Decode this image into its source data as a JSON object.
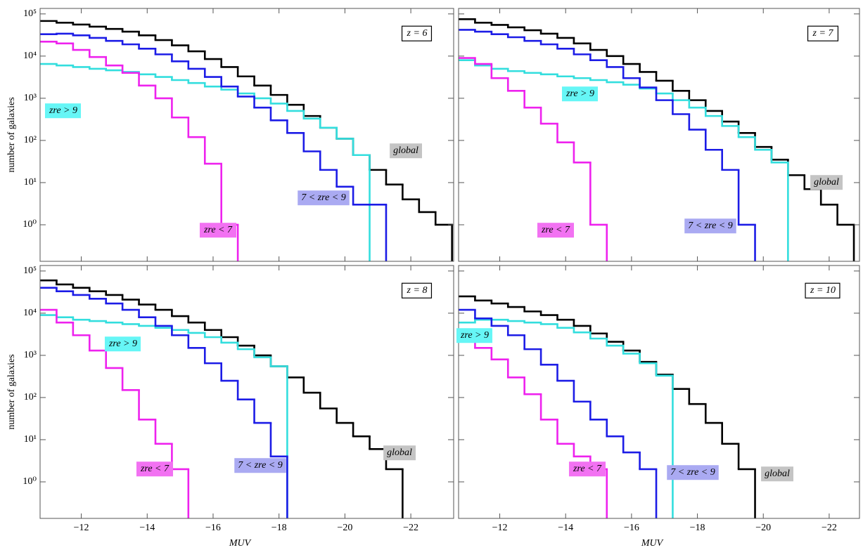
{
  "chart_data": [
    {
      "type": "histogram",
      "label": "z = 6",
      "log_y": true,
      "ylabel": "number of galaxies",
      "bins": [
        -10.75,
        -11.25,
        -11.75,
        -12.25,
        -12.75,
        -13.25,
        -13.75,
        -14.25,
        -14.75,
        -15.25,
        -15.75,
        -16.25,
        -16.75,
        -17.25,
        -17.75,
        -18.25,
        -18.75,
        -19.25,
        -19.75,
        -20.25,
        -20.75,
        -21.25,
        -21.75,
        -22.25,
        -22.75,
        -23.25
      ],
      "xlim": [
        -10.75,
        -23.3
      ],
      "ylim": [
        0.136,
        135000
      ],
      "xticks": [
        -12,
        -14,
        -16,
        -18,
        -20,
        -22
      ],
      "yticks": [
        {
          "value": 1,
          "label": "10⁰"
        },
        {
          "value": 10,
          "label": "10¹"
        },
        {
          "value": 100,
          "label": "10²"
        },
        {
          "value": 1000,
          "label": "10³"
        },
        {
          "value": 10000,
          "label": "10⁴"
        },
        {
          "value": 100000,
          "label": "10⁵"
        }
      ],
      "series": [
        {
          "name": "global",
          "color": "#000000",
          "box": "#c4c4c4",
          "values": [
            68000,
            62000,
            56000,
            50000,
            44000,
            38000,
            31000,
            24000,
            18000,
            13000,
            8500,
            5500,
            3300,
            2000,
            1200,
            700,
            380,
            200,
            110,
            45,
            20,
            9,
            4,
            2,
            1
          ]
        },
        {
          "name": "zre > 9",
          "color": "#33dede",
          "box": "#66f6f6",
          "values": [
            6500,
            6000,
            5500,
            5000,
            4600,
            4200,
            3700,
            3200,
            2700,
            2300,
            1900,
            1600,
            1300,
            1000,
            750,
            500,
            330,
            200,
            110,
            45,
            null,
            null,
            null,
            null,
            null
          ]
        },
        {
          "name": "7 < zre < 9",
          "color": "#1c1ce6",
          "box": "#aaaaf2",
          "values": [
            33000,
            34000,
            31000,
            27000,
            23000,
            19000,
            15000,
            11000,
            7500,
            5000,
            3200,
            1900,
            1100,
            600,
            300,
            150,
            55,
            20,
            8,
            3,
            3,
            null,
            null,
            null,
            null
          ]
        },
        {
          "name": "zre < 7",
          "color": "#ee22ee",
          "box": "#f272f2",
          "values": [
            22000,
            20000,
            14000,
            9500,
            6000,
            4000,
            2000,
            1000,
            350,
            120,
            28,
            1,
            null,
            null,
            null,
            null,
            null,
            null,
            null,
            null,
            null,
            null,
            null,
            null,
            null
          ]
        }
      ]
    },
    {
      "type": "histogram",
      "label": "z = 7",
      "log_y": true,
      "bins": [
        -10.75,
        -11.25,
        -11.75,
        -12.25,
        -12.75,
        -13.25,
        -13.75,
        -14.25,
        -14.75,
        -15.25,
        -15.75,
        -16.25,
        -16.75,
        -17.25,
        -17.75,
        -18.25,
        -18.75,
        -19.25,
        -19.75,
        -20.25,
        -20.75,
        -21.25,
        -21.75,
        -22.25,
        -22.75,
        -23.25
      ],
      "xlim": [
        -10.75,
        -22.92
      ],
      "ylim": [
        0.136,
        135000
      ],
      "xticks": [
        -12,
        -14,
        -16,
        -18,
        -20,
        -22
      ],
      "yticks": [
        1,
        10,
        100,
        1000,
        10000,
        100000
      ],
      "series": [
        {
          "name": "global",
          "color": "#000000",
          "box": "#c4c4c4",
          "values": [
            75000,
            62000,
            55000,
            48000,
            41000,
            34000,
            27000,
            20000,
            14000,
            10000,
            6500,
            4200,
            2600,
            1500,
            900,
            500,
            280,
            150,
            70,
            35,
            15,
            7,
            3,
            1,
            null
          ]
        },
        {
          "name": "zre > 9",
          "color": "#33dede",
          "box": "#66f6f6",
          "values": [
            8000,
            6000,
            5000,
            4400,
            4000,
            3700,
            3300,
            3000,
            2700,
            2400,
            2100,
            1700,
            1300,
            900,
            600,
            380,
            220,
            120,
            60,
            30,
            null,
            null,
            null,
            null,
            null
          ]
        },
        {
          "name": "7 < zre < 9",
          "color": "#1c1ce6",
          "box": "#aaaaf2",
          "values": [
            42000,
            38000,
            33000,
            28000,
            23000,
            19000,
            15000,
            11000,
            8000,
            5500,
            3000,
            1800,
            900,
            420,
            180,
            60,
            20,
            1,
            null,
            null,
            null,
            null,
            null,
            null,
            null
          ]
        },
        {
          "name": "zre < 7",
          "color": "#ee22ee",
          "box": "#f272f2",
          "values": [
            9000,
            6500,
            3000,
            1500,
            600,
            250,
            90,
            30,
            1,
            null,
            null,
            null,
            null,
            null,
            null,
            null,
            null,
            null,
            null,
            null,
            null,
            null,
            null,
            null,
            null
          ]
        }
      ]
    },
    {
      "type": "histogram",
      "label": "z = 8",
      "log_y": true,
      "ylabel": "number of galaxies",
      "xlabel": "MUV",
      "bins": [
        -10.75,
        -11.25,
        -11.75,
        -12.25,
        -12.75,
        -13.25,
        -13.75,
        -14.25,
        -14.75,
        -15.25,
        -15.75,
        -16.25,
        -16.75,
        -17.25,
        -17.75,
        -18.25,
        -18.75,
        -19.25,
        -19.75,
        -20.25,
        -20.75,
        -21.25,
        -21.75,
        -22.25,
        -22.75,
        -23.25
      ],
      "xlim": [
        -10.75,
        -23.3
      ],
      "ylim": [
        0.136,
        135000
      ],
      "xticks": [
        {
          "value": -12,
          "label": "−12"
        },
        {
          "value": -14,
          "label": "−14"
        },
        {
          "value": -16,
          "label": "−16"
        },
        {
          "value": -18,
          "label": "−18"
        },
        {
          "value": -20,
          "label": "−20"
        },
        {
          "value": -22,
          "label": "−22"
        }
      ],
      "yticks": [
        {
          "value": 1,
          "label": "10⁰"
        },
        {
          "value": 10,
          "label": "10¹"
        },
        {
          "value": 100,
          "label": "10²"
        },
        {
          "value": 1000,
          "label": "10³"
        },
        {
          "value": 10000,
          "label": "10⁴"
        },
        {
          "value": 100000,
          "label": "10⁵"
        }
      ],
      "series": [
        {
          "name": "global",
          "color": "#000000",
          "box": "#c4c4c4",
          "values": [
            60000,
            48000,
            40000,
            33000,
            27000,
            21000,
            16000,
            12000,
            8500,
            6000,
            4000,
            2700,
            1700,
            1000,
            550,
            300,
            130,
            55,
            25,
            12,
            6,
            2,
            null,
            null,
            null
          ]
        },
        {
          "name": "zre > 9",
          "color": "#33dede",
          "box": "#66f6f6",
          "values": [
            9000,
            8000,
            7000,
            6500,
            6000,
            5500,
            5000,
            4500,
            4000,
            3400,
            2700,
            2000,
            1400,
            900,
            550,
            null,
            null,
            null,
            null,
            null,
            null,
            null,
            null,
            null,
            null
          ]
        },
        {
          "name": "7 < zre < 9",
          "color": "#1c1ce6",
          "box": "#aaaaf2",
          "values": [
            40000,
            33000,
            27000,
            22000,
            17000,
            12000,
            8000,
            5000,
            3000,
            1500,
            650,
            250,
            90,
            25,
            4,
            null,
            null,
            null,
            null,
            null,
            null,
            null,
            null,
            null,
            null
          ]
        },
        {
          "name": "zre < 7",
          "color": "#ee22ee",
          "box": "#f272f2",
          "values": [
            12000,
            6000,
            3000,
            1300,
            500,
            150,
            30,
            8,
            2,
            null,
            null,
            null,
            null,
            null,
            null,
            null,
            null,
            null,
            null,
            null,
            null,
            null,
            null,
            null,
            null
          ]
        }
      ]
    },
    {
      "type": "histogram",
      "label": "z = 10",
      "log_y": true,
      "xlabel": "MUV",
      "bins": [
        -10.75,
        -11.25,
        -11.75,
        -12.25,
        -12.75,
        -13.25,
        -13.75,
        -14.25,
        -14.75,
        -15.25,
        -15.75,
        -16.25,
        -16.75,
        -17.25,
        -17.75,
        -18.25,
        -18.75,
        -19.25,
        -19.75,
        -20.25,
        -20.75,
        -21.25,
        -21.75,
        -22.25,
        -22.75,
        -23.25
      ],
      "xlim": [
        -10.75,
        -22.92
      ],
      "ylim": [
        0.136,
        135000
      ],
      "xticks": [
        {
          "value": -12,
          "label": "−12"
        },
        {
          "value": -14,
          "label": "−14"
        },
        {
          "value": -16,
          "label": "−16"
        },
        {
          "value": -18,
          "label": "−18"
        },
        {
          "value": -20,
          "label": "−20"
        },
        {
          "value": -22,
          "label": "−22"
        }
      ],
      "yticks": [
        1,
        10,
        100,
        1000,
        10000,
        100000
      ],
      "series": [
        {
          "name": "global",
          "color": "#000000",
          "box": "#c4c4c4",
          "values": [
            25000,
            20000,
            17000,
            14000,
            11000,
            9000,
            7000,
            5000,
            3300,
            2100,
            1300,
            700,
            350,
            160,
            70,
            25,
            8,
            2,
            null,
            null,
            null,
            null,
            null,
            null,
            null
          ]
        },
        {
          "name": "zre > 9",
          "color": "#33dede",
          "box": "#66f6f6",
          "values": [
            6000,
            7000,
            7000,
            6500,
            6000,
            5500,
            4500,
            3500,
            2500,
            1700,
            1100,
            650,
            330,
            null,
            null,
            null,
            null,
            null,
            null,
            null,
            null,
            null,
            null,
            null,
            null
          ]
        },
        {
          "name": "7 < zre < 9",
          "color": "#1c1ce6",
          "box": "#aaaaf2",
          "values": [
            12000,
            7500,
            5000,
            3000,
            1400,
            600,
            250,
            80,
            30,
            12,
            5,
            2,
            null,
            null,
            null,
            null,
            null,
            null,
            null,
            null,
            null,
            null,
            null,
            null,
            null
          ]
        },
        {
          "name": "zre < 7",
          "color": "#ee22ee",
          "box": "#f272f2",
          "values": [
            3000,
            1500,
            800,
            300,
            120,
            30,
            8,
            4,
            2,
            null,
            null,
            null,
            null,
            null,
            null,
            null,
            null,
            null,
            null,
            null,
            null,
            null,
            null,
            null,
            null
          ]
        }
      ]
    }
  ]
}
